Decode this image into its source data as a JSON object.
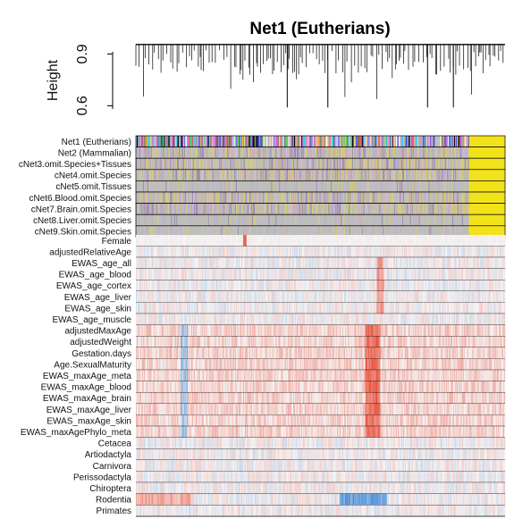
{
  "chart_data": {
    "type": "heatmap",
    "title": "Net1 (Eutherians)",
    "dendrogram": {
      "ylabel": "Height",
      "yticks": [
        0.6,
        0.9
      ],
      "ylim": [
        0.55,
        0.98
      ]
    },
    "module_rows": [
      "Net1 (Eutherians)",
      "Net2 (Mammalian)",
      "cNet3.omit.Species+Tissues",
      "cNet4.omit.Species",
      "cNet5.omit.Tissues",
      "cNet6.Blood.omit.Species",
      "cNet7.Brain.omit.Species",
      "cNet8.Liver.omit.Species",
      "cNet9.Skin.omit.Species"
    ],
    "trait_rows": [
      "Female",
      "adjustedRelativeAge",
      "EWAS_age_all",
      "EWAS_age_blood",
      "EWAS_age_cortex",
      "EWAS_age_liver",
      "EWAS_age_skin",
      "EWAS_age_muscle",
      "adjustedMaxAge",
      "adjustedWeight",
      "Gestation.days",
      "Age.SexualMaturity",
      "EWAS_maxAge_meta",
      "EWAS_maxAge_blood",
      "EWAS_maxAge_brain",
      "EWAS_maxAge_liver",
      "EWAS_maxAge_skin",
      "EWAS_maxAgePhylo_meta",
      "Cetacea",
      "Artiodactyla",
      "Carnivora",
      "Perissodactyla",
      "Chiroptera",
      "Rodentia",
      "Primates"
    ],
    "colors": {
      "positive": "#e8432c",
      "negative": "#2f7fd1",
      "neutral": "#f6f3f3",
      "grey_module": "#bdbdbd",
      "yellow_module": "#f2e21a"
    },
    "grid": false
  }
}
